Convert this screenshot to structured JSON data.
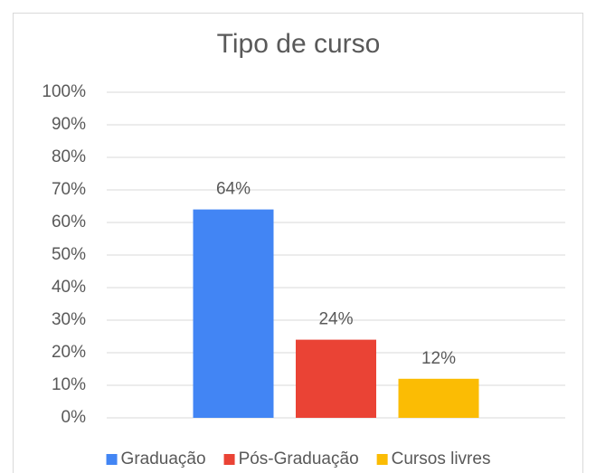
{
  "chart_data": {
    "type": "bar",
    "title": "Tipo de curso",
    "categories": [
      null
    ],
    "series": [
      {
        "name": "Graduação",
        "color": "#4285f4",
        "values": [
          64
        ],
        "value_labels": [
          "64%"
        ]
      },
      {
        "name": "Pós-Graduação",
        "color": "#ea4335",
        "values": [
          24
        ],
        "value_labels": [
          "24%"
        ]
      },
      {
        "name": "Cursos livres",
        "color": "#fbbc04",
        "values": [
          12
        ],
        "value_labels": [
          "12%"
        ]
      }
    ],
    "ylim": [
      0,
      100
    ],
    "yticks": [
      {
        "value": 0,
        "label": "0%"
      },
      {
        "value": 10,
        "label": "10%"
      },
      {
        "value": 20,
        "label": "20%"
      },
      {
        "value": 30,
        "label": "30%"
      },
      {
        "value": 40,
        "label": "40%"
      },
      {
        "value": 50,
        "label": "50%"
      },
      {
        "value": 60,
        "label": "60%"
      },
      {
        "value": 70,
        "label": "70%"
      },
      {
        "value": 80,
        "label": "80%"
      },
      {
        "value": 90,
        "label": "90%"
      },
      {
        "value": 100,
        "label": "100%"
      }
    ],
    "grid": true,
    "legend": "bottom"
  }
}
